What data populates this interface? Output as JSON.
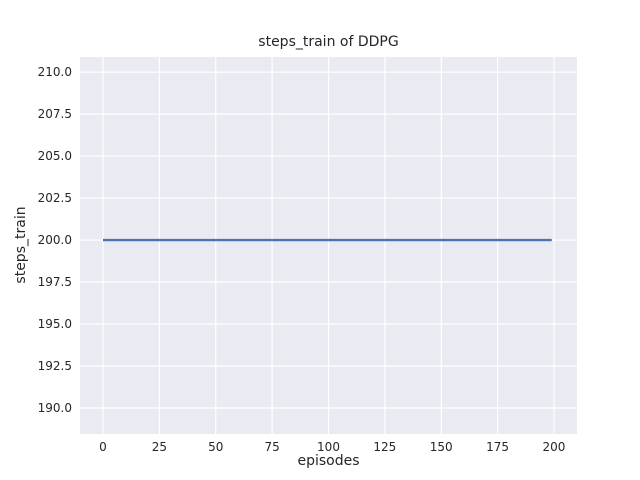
{
  "figure": {
    "background": "#ffffff",
    "axes_background": "#eaeaf2",
    "grid_color": "#ffffff",
    "text_color": "#262626"
  },
  "chart_data": {
    "type": "line",
    "title": "steps_train of DDPG",
    "xlabel": "episodes",
    "ylabel": "steps_train",
    "xlim": [
      -10.2,
      210.2
    ],
    "ylim": [
      188.45,
      210.9
    ],
    "xticks": [
      0,
      25,
      50,
      75,
      100,
      125,
      150,
      175,
      200
    ],
    "yticks": [
      190.0,
      192.5,
      195.0,
      197.5,
      200.0,
      202.5,
      205.0,
      207.5,
      210.0
    ],
    "grid": true,
    "legend": "none",
    "series": [
      {
        "name": "steps_train",
        "color": "#4c72b0",
        "x": [
          0,
          199
        ],
        "y": [
          200,
          200
        ],
        "note": "constant value 200 for every episode from 0 to 199"
      }
    ]
  }
}
